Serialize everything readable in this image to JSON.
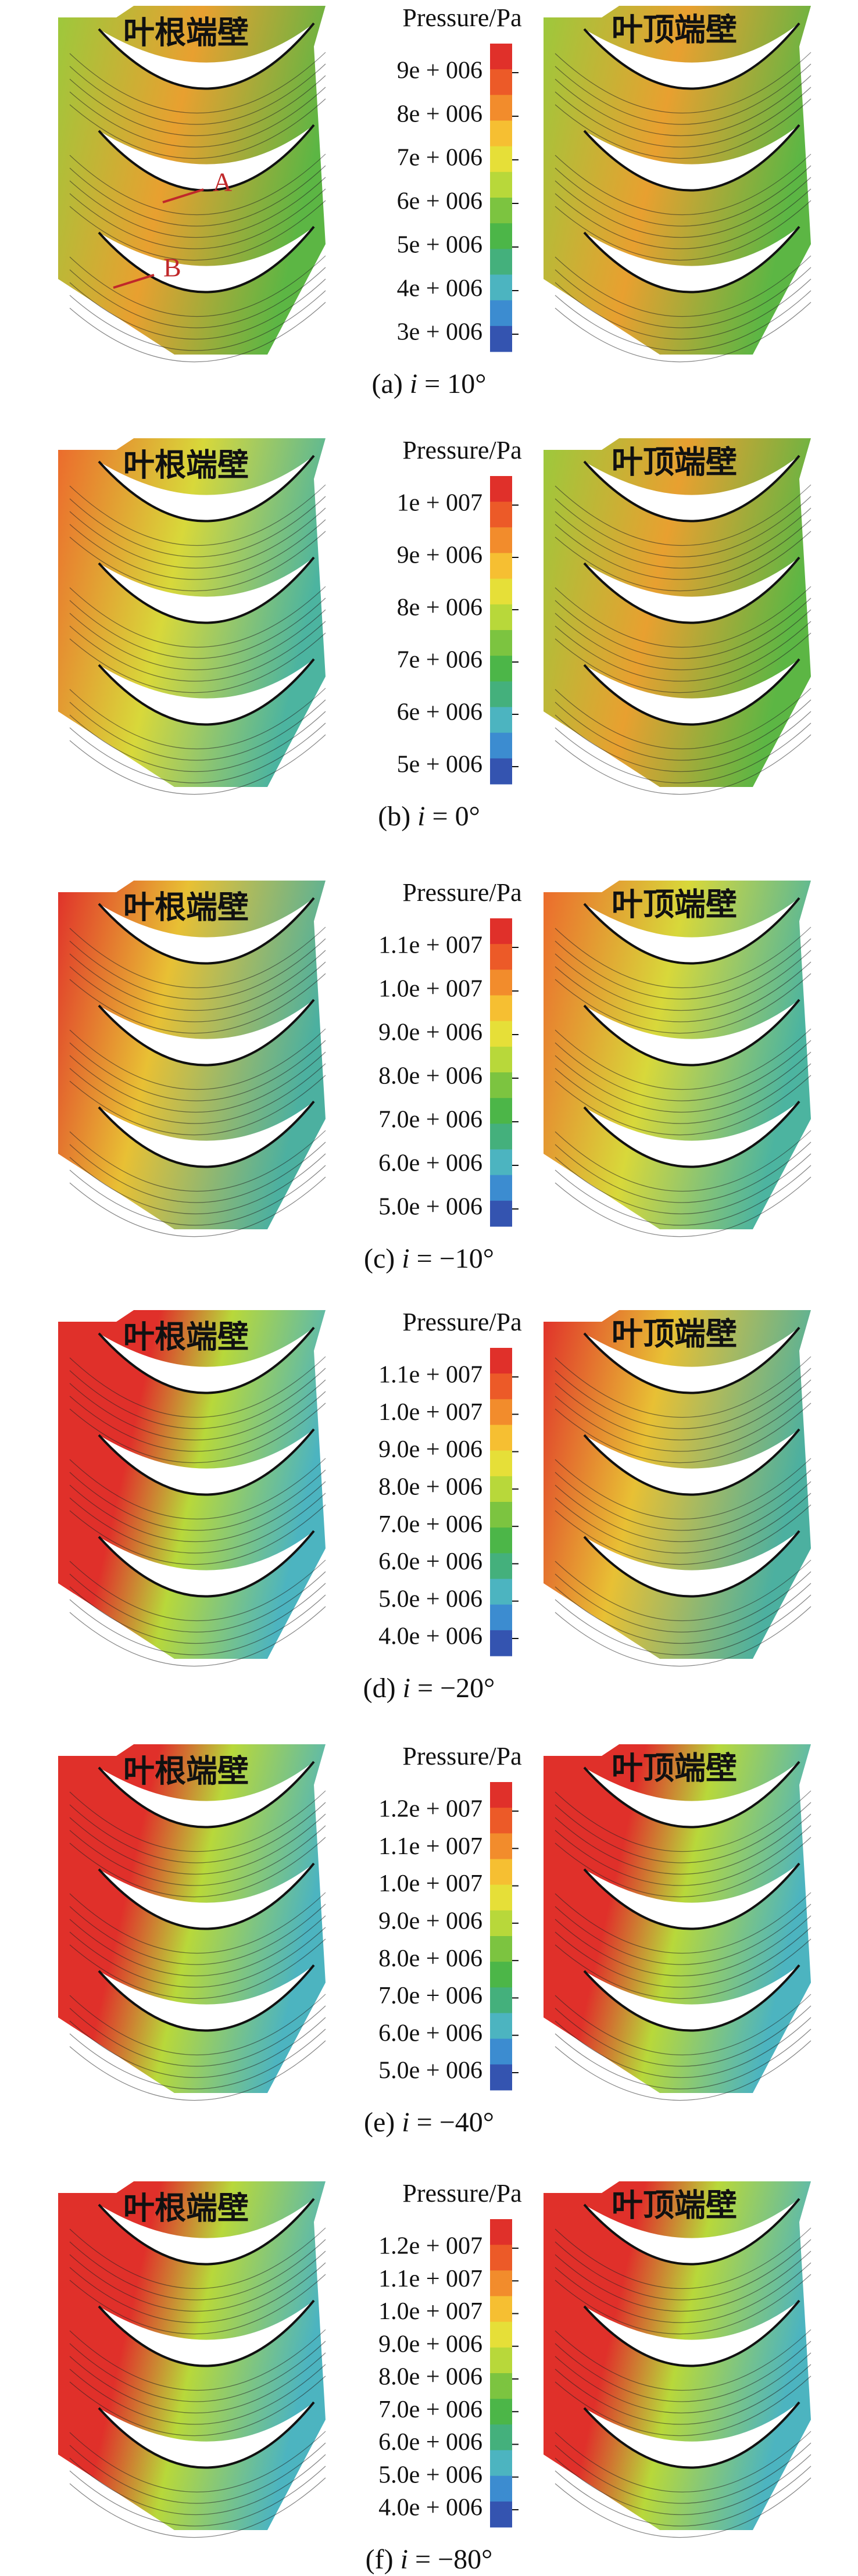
{
  "colormap": [
    "#e0302a",
    "#ec5a28",
    "#f28c2c",
    "#f6bf32",
    "#e6df38",
    "#b8d83a",
    "#7cc440",
    "#4cb648",
    "#44b07c",
    "#4cb4c0",
    "#3c8cd0",
    "#3454b0"
  ],
  "panels": [
    {
      "root_label": "叶根端壁",
      "tip_label": "叶顶端壁",
      "colorbar_title": "Pressure/Pa",
      "ticks": [
        "9e + 006",
        "8e + 006",
        "7e + 006",
        "6e + 006",
        "5e + 006",
        "4e + 006",
        "3e + 006"
      ],
      "tag": "(a)",
      "symbol": "i",
      "angle": "= 10°",
      "annotations": [
        "A",
        "B"
      ]
    },
    {
      "root_label": "叶根端壁",
      "tip_label": "叶顶端壁",
      "colorbar_title": "Pressure/Pa",
      "ticks": [
        "1e + 007",
        "9e + 006",
        "8e + 006",
        "7e + 006",
        "6e + 006",
        "5e + 006"
      ],
      "tag": "(b)",
      "symbol": "i",
      "angle": "= 0°"
    },
    {
      "root_label": "叶根端壁",
      "tip_label": "叶顶端壁",
      "colorbar_title": "Pressure/Pa",
      "ticks": [
        "1.1e + 007",
        "1.0e + 007",
        "9.0e + 006",
        "8.0e + 006",
        "7.0e + 006",
        "6.0e + 006",
        "5.0e + 006"
      ],
      "tag": "(c)",
      "symbol": "i",
      "angle": "= −10°"
    },
    {
      "root_label": "叶根端壁",
      "tip_label": "叶顶端壁",
      "colorbar_title": "Pressure/Pa",
      "ticks": [
        "1.1e + 007",
        "1.0e + 007",
        "9.0e + 006",
        "8.0e + 006",
        "7.0e + 006",
        "6.0e + 006",
        "5.0e + 006",
        "4.0e + 006"
      ],
      "tag": "(d)",
      "symbol": "i",
      "angle": "= −20°"
    },
    {
      "root_label": "叶根端壁",
      "tip_label": "叶顶端壁",
      "colorbar_title": "Pressure/Pa",
      "ticks": [
        "1.2e + 007",
        "1.1e + 007",
        "1.0e + 007",
        "9.0e + 006",
        "8.0e + 006",
        "7.0e + 006",
        "6.0e + 006",
        "5.0e + 006"
      ],
      "tag": "(e)",
      "symbol": "i",
      "angle": "= −40°"
    },
    {
      "root_label": "叶根端壁",
      "tip_label": "叶顶端壁",
      "colorbar_title": "Pressure/Pa",
      "ticks": [
        "1.2e + 007",
        "1.1e + 007",
        "1.0e + 007",
        "9.0e + 006",
        "8.0e + 006",
        "7.0e + 006",
        "6.0e + 006",
        "5.0e + 006",
        "4.0e + 006"
      ],
      "tag": "(f)",
      "symbol": "i",
      "angle": "= −80°"
    }
  ]
}
